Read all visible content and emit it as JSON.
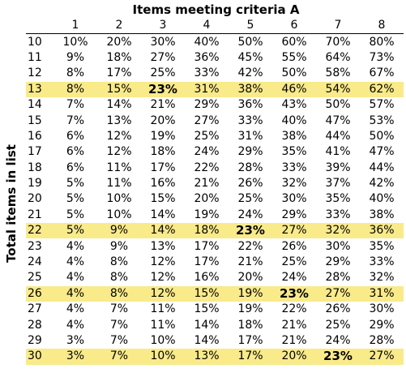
{
  "header": {
    "column_title": "Items meeting criteria A",
    "row_title": "Total items in list"
  },
  "highlight_color": "#f9ea8a",
  "columns": [
    "1",
    "2",
    "3",
    "4",
    "5",
    "6",
    "7",
    "8"
  ],
  "rows": [
    {
      "total": "10",
      "values": [
        "10%",
        "20%",
        "30%",
        "40%",
        "50%",
        "60%",
        "70%",
        "80%"
      ],
      "highlight": false,
      "bold_col": -1
    },
    {
      "total": "11",
      "values": [
        "9%",
        "18%",
        "27%",
        "36%",
        "45%",
        "55%",
        "64%",
        "73%"
      ],
      "highlight": false,
      "bold_col": -1
    },
    {
      "total": "12",
      "values": [
        "8%",
        "17%",
        "25%",
        "33%",
        "42%",
        "50%",
        "58%",
        "67%"
      ],
      "highlight": false,
      "bold_col": -1
    },
    {
      "total": "13",
      "values": [
        "8%",
        "15%",
        "23%",
        "31%",
        "38%",
        "46%",
        "54%",
        "62%"
      ],
      "highlight": true,
      "bold_col": 2
    },
    {
      "total": "14",
      "values": [
        "7%",
        "14%",
        "21%",
        "29%",
        "36%",
        "43%",
        "50%",
        "57%"
      ],
      "highlight": false,
      "bold_col": -1
    },
    {
      "total": "15",
      "values": [
        "7%",
        "13%",
        "20%",
        "27%",
        "33%",
        "40%",
        "47%",
        "53%"
      ],
      "highlight": false,
      "bold_col": -1
    },
    {
      "total": "16",
      "values": [
        "6%",
        "12%",
        "19%",
        "25%",
        "31%",
        "38%",
        "44%",
        "50%"
      ],
      "highlight": false,
      "bold_col": -1
    },
    {
      "total": "17",
      "values": [
        "6%",
        "12%",
        "18%",
        "24%",
        "29%",
        "35%",
        "41%",
        "47%"
      ],
      "highlight": false,
      "bold_col": -1
    },
    {
      "total": "18",
      "values": [
        "6%",
        "11%",
        "17%",
        "22%",
        "28%",
        "33%",
        "39%",
        "44%"
      ],
      "highlight": false,
      "bold_col": -1
    },
    {
      "total": "19",
      "values": [
        "5%",
        "11%",
        "16%",
        "21%",
        "26%",
        "32%",
        "37%",
        "42%"
      ],
      "highlight": false,
      "bold_col": -1
    },
    {
      "total": "20",
      "values": [
        "5%",
        "10%",
        "15%",
        "20%",
        "25%",
        "30%",
        "35%",
        "40%"
      ],
      "highlight": false,
      "bold_col": -1
    },
    {
      "total": "21",
      "values": [
        "5%",
        "10%",
        "14%",
        "19%",
        "24%",
        "29%",
        "33%",
        "38%"
      ],
      "highlight": false,
      "bold_col": -1
    },
    {
      "total": "22",
      "values": [
        "5%",
        "9%",
        "14%",
        "18%",
        "23%",
        "27%",
        "32%",
        "36%"
      ],
      "highlight": true,
      "bold_col": 4
    },
    {
      "total": "23",
      "values": [
        "4%",
        "9%",
        "13%",
        "17%",
        "22%",
        "26%",
        "30%",
        "35%"
      ],
      "highlight": false,
      "bold_col": -1
    },
    {
      "total": "24",
      "values": [
        "4%",
        "8%",
        "12%",
        "17%",
        "21%",
        "25%",
        "29%",
        "33%"
      ],
      "highlight": false,
      "bold_col": -1
    },
    {
      "total": "25",
      "values": [
        "4%",
        "8%",
        "12%",
        "16%",
        "20%",
        "24%",
        "28%",
        "32%"
      ],
      "highlight": false,
      "bold_col": -1
    },
    {
      "total": "26",
      "values": [
        "4%",
        "8%",
        "12%",
        "15%",
        "19%",
        "23%",
        "27%",
        "31%"
      ],
      "highlight": true,
      "bold_col": 5
    },
    {
      "total": "27",
      "values": [
        "4%",
        "7%",
        "11%",
        "15%",
        "19%",
        "22%",
        "26%",
        "30%"
      ],
      "highlight": false,
      "bold_col": -1
    },
    {
      "total": "28",
      "values": [
        "4%",
        "7%",
        "11%",
        "14%",
        "18%",
        "21%",
        "25%",
        "29%"
      ],
      "highlight": false,
      "bold_col": -1
    },
    {
      "total": "29",
      "values": [
        "3%",
        "7%",
        "10%",
        "14%",
        "17%",
        "21%",
        "24%",
        "28%"
      ],
      "highlight": false,
      "bold_col": -1
    },
    {
      "total": "30",
      "values": [
        "3%",
        "7%",
        "10%",
        "13%",
        "17%",
        "20%",
        "23%",
        "27%"
      ],
      "highlight": true,
      "bold_col": 6
    }
  ]
}
